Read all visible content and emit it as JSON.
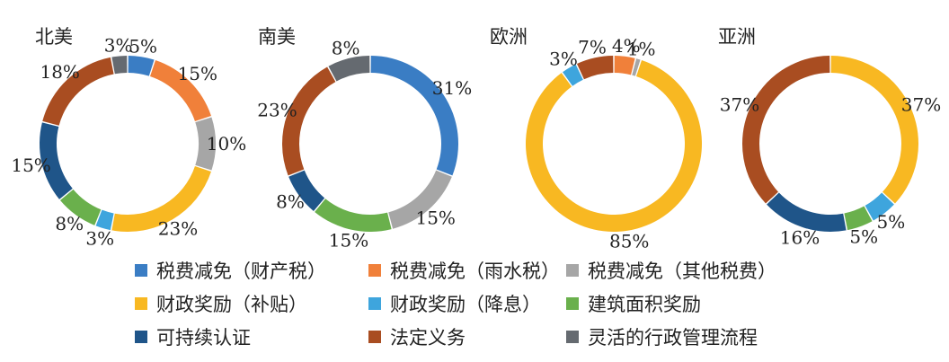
{
  "chart_data": [
    {
      "type": "pie",
      "title": "北美",
      "slices": [
        {
          "category": "税费减免（财产税）",
          "value": 5,
          "label": "5%"
        },
        {
          "category": "税费减免（雨水税）",
          "value": 15,
          "label": "15%"
        },
        {
          "category": "税费减免（其他税费）",
          "value": 10,
          "label": "10%"
        },
        {
          "category": "财政奖励（补贴）",
          "value": 23,
          "label": "23%"
        },
        {
          "category": "财政奖励（降息）",
          "value": 3,
          "label": "3%"
        },
        {
          "category": "建筑面积奖励",
          "value": 8,
          "label": "8%"
        },
        {
          "category": "可持续认证",
          "value": 15,
          "label": "15%"
        },
        {
          "category": "法定义务",
          "value": 18,
          "label": "18%"
        },
        {
          "category": "灵活的行政管理流程",
          "value": 3,
          "label": "3%"
        }
      ]
    },
    {
      "type": "pie",
      "title": "南美",
      "slices": [
        {
          "category": "税费减免（财产税）",
          "value": 31,
          "label": "31%"
        },
        {
          "category": "税费减免（其他税费）",
          "value": 15,
          "label": "15%"
        },
        {
          "category": "建筑面积奖励",
          "value": 15,
          "label": "15%"
        },
        {
          "category": "可持续认证",
          "value": 8,
          "label": "8%"
        },
        {
          "category": "法定义务",
          "value": 23,
          "label": "23%"
        },
        {
          "category": "灵活的行政管理流程",
          "value": 8,
          "label": "8%"
        }
      ]
    },
    {
      "type": "pie",
      "title": "欧洲",
      "slices": [
        {
          "category": "税费减免（雨水税）",
          "value": 4,
          "label": "4%"
        },
        {
          "category": "税费减免（其他税费）",
          "value": 1,
          "label": "1%"
        },
        {
          "category": "财政奖励（补贴）",
          "value": 85,
          "label": "85%"
        },
        {
          "category": "财政奖励（降息）",
          "value": 3,
          "label": "3%"
        },
        {
          "category": "法定义务",
          "value": 7,
          "label": "7%"
        }
      ]
    },
    {
      "type": "pie",
      "title": "亚洲",
      "slices": [
        {
          "category": "财政奖励（补贴）",
          "value": 37,
          "label": "37%"
        },
        {
          "category": "财政奖励（降息）",
          "value": 5,
          "label": "5%"
        },
        {
          "category": "建筑面积奖励",
          "value": 5,
          "label": "5%"
        },
        {
          "category": "可持续认证",
          "value": 16,
          "label": "16%"
        },
        {
          "category": "法定义务",
          "value": 37,
          "label": "37%"
        }
      ]
    }
  ],
  "legend": {
    "placement": "bottom",
    "items": [
      {
        "label": "税费减免（财产税）",
        "color": "#3a7dc4"
      },
      {
        "label": "税费减免（雨水税）",
        "color": "#f0803a"
      },
      {
        "label": "税费减免（其他税费）",
        "color": "#a6a6a6"
      },
      {
        "label": "财政奖励（补贴）",
        "color": "#f8b822"
      },
      {
        "label": "财政奖励（降息）",
        "color": "#3ea5dd"
      },
      {
        "label": "建筑面积奖励",
        "color": "#6ab04c"
      },
      {
        "label": "可持续认证",
        "color": "#1f5589"
      },
      {
        "label": "法定义务",
        "color": "#a94d21"
      },
      {
        "label": "灵活的行政管理流程",
        "color": "#656a70"
      }
    ]
  }
}
